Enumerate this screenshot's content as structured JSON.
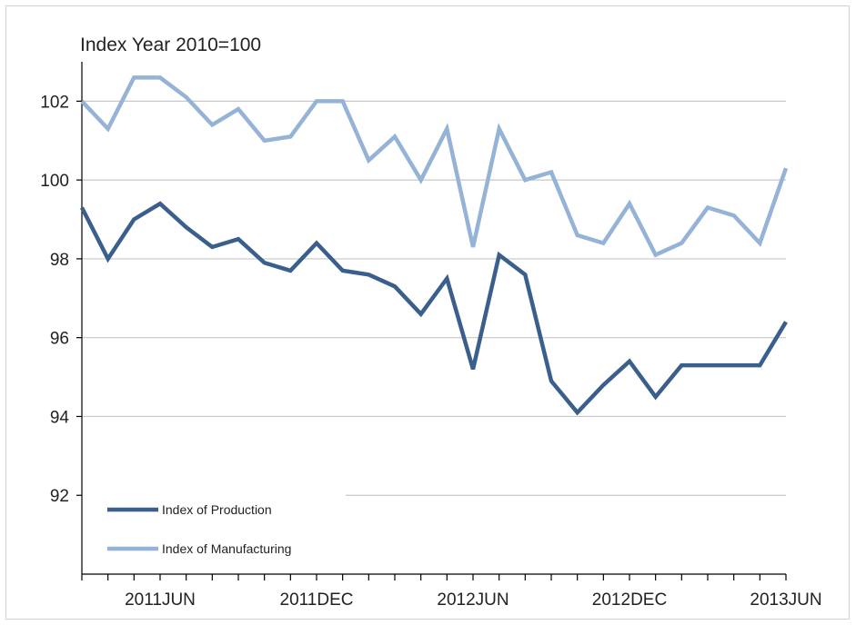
{
  "chart_data": {
    "type": "line",
    "title": "Index Year 2010=100",
    "xlabel": "",
    "ylabel": "",
    "ylim": [
      90,
      103
    ],
    "yticks": [
      92,
      94,
      96,
      98,
      100,
      102
    ],
    "x": [
      "2011MAR",
      "2011APR",
      "2011MAY",
      "2011JUN",
      "2011JUL",
      "2011AUG",
      "2011SEP",
      "2011OCT",
      "2011NOV",
      "2011DEC",
      "2012JAN",
      "2012FEB",
      "2012MAR",
      "2012APR",
      "2012MAY",
      "2012JUN",
      "2012JUL",
      "2012AUG",
      "2012SEP",
      "2012OCT",
      "2012NOV",
      "2012DEC",
      "2013JAN",
      "2013FEB",
      "2013MAR",
      "2013APR",
      "2013MAY",
      "2013JUN"
    ],
    "xtick_labels": [
      {
        "index": 3,
        "label": "2011JUN"
      },
      {
        "index": 9,
        "label": "2011DEC"
      },
      {
        "index": 15,
        "label": "2012JUN"
      },
      {
        "index": 21,
        "label": "2012DEC"
      },
      {
        "index": 27,
        "label": "2013JUN"
      }
    ],
    "grid": true,
    "legend_position": "bottom-left",
    "series": [
      {
        "name": "Index of Production",
        "color": "#3a5f8c",
        "values": [
          99.3,
          98.0,
          99.0,
          99.4,
          98.8,
          98.3,
          98.5,
          97.9,
          97.7,
          98.4,
          97.7,
          97.6,
          97.3,
          96.6,
          97.5,
          95.2,
          98.1,
          97.6,
          94.9,
          94.1,
          94.8,
          95.4,
          94.5,
          95.3,
          95.3,
          95.3,
          95.3,
          96.4
        ]
      },
      {
        "name": "Index of Manufacturing",
        "color": "#95b3d7",
        "values": [
          102.0,
          101.3,
          102.6,
          102.6,
          102.1,
          101.4,
          101.8,
          101.0,
          101.1,
          102.0,
          102.0,
          100.5,
          101.1,
          100.0,
          101.3,
          98.3,
          101.3,
          100.0,
          100.2,
          98.6,
          98.4,
          99.4,
          98.1,
          98.4,
          99.3,
          99.1,
          98.4,
          100.3
        ]
      }
    ]
  }
}
